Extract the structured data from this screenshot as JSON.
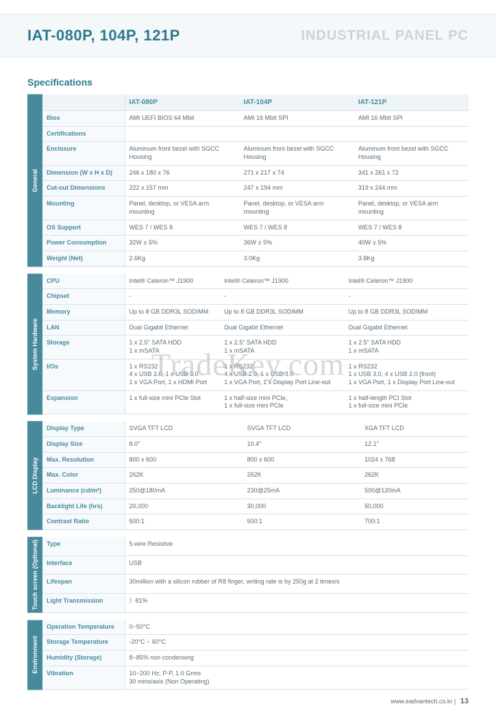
{
  "title": {
    "main": "IAT-080P, 104P, 121P",
    "sub": "INDUSTRIAL PANEL PC"
  },
  "headings": {
    "specifications": "Specifications"
  },
  "columns": [
    "IAT-080P",
    "IAT-104P",
    "IAT-121P"
  ],
  "sections": [
    {
      "label": "General",
      "rows": [
        {
          "name": "Bios",
          "v": [
            "AMI UEFI BIOS 64 Mbit",
            "AMI 16 Mbit SPI",
            "AMI 16 Mbit SPI"
          ]
        },
        {
          "name": "Certifications",
          "v": [
            "",
            "",
            ""
          ]
        },
        {
          "name": "Enclosure",
          "v": [
            "Aluminum front bezel with SGCC Housing",
            "Aluminum front bezel with SGCC Housing",
            "Aluminum front bezel with SGCC Housing"
          ]
        },
        {
          "name": "Dimension (W x H x D)",
          "v": [
            "246 x 180 x 76",
            "271 x 217 x 74",
            "341 x 261 x 72"
          ]
        },
        {
          "name": "Cut-out Dimensions",
          "v": [
            "222 x 157 mm",
            "247 x 194 mm",
            "319 x 244 mm"
          ]
        },
        {
          "name": "Mounting",
          "v": [
            "Panel, desktop, or VESA arm mounting",
            "Panel, desktop, or VESA arm mounting",
            "Panel, desktop, or VESA arm mounting"
          ]
        },
        {
          "name": "OS Support",
          "v": [
            "WES 7 / WES 8",
            "WES 7 / WES 8",
            "WES 7 / WES 8"
          ]
        },
        {
          "name": "Power Consumption",
          "v": [
            "32W ± 5%",
            "36W ± 5%",
            "40W ± 5%"
          ]
        },
        {
          "name": "Weight (Net)",
          "v": [
            "2.6Kg",
            "3.0Kg",
            "3.8Kg"
          ]
        }
      ]
    },
    {
      "label": "System Hardware",
      "rows": [
        {
          "name": "CPU",
          "v": [
            "Intel® Celeron™ J1900",
            "Intel® Celeron™ J1900",
            "Intel® Celeron™ J1900"
          ]
        },
        {
          "name": "Chipset",
          "v": [
            "-",
            "-",
            "-"
          ]
        },
        {
          "name": "Memory",
          "v": [
            "Up to 8 GB DDR3L SODIMM",
            "Up to 8 GB DDR3L SODIMM",
            "Up to 8 GB DDR3L SODIMM"
          ]
        },
        {
          "name": "LAN",
          "v": [
            "Dual Gigabit Ethernet",
            "Dual Gigabit Ethernet",
            "Dual Gigabit Ethernet"
          ]
        },
        {
          "name": "Storage",
          "v": [
            "1 x 2.5\" SATA HDD\n1 x mSATA",
            "1 x 2.5\" SATA HDD\n1 x mSATA",
            "1 x 2.5\" SATA HDD\n1 x mSATA"
          ]
        },
        {
          "name": "I/Os",
          "v": [
            "1 x RS232\n4 x USB 2.0, 1 x USB 3.0\n1 x VGA Port, 1 x HDMI Port",
            "1 x RS232\n4 x USB 2.0, 1 x USB 3.0\n1 x VGA Port, 1 x Display Port Line-out",
            "1 x RS232\n1 x USB 3.0, 4 x USB 2.0 (front)\n1 x VGA Port, 1 x Display Port Line-out"
          ]
        },
        {
          "name": "Expansion",
          "v": [
            "1 x full-size mini PCIe Slot",
            "1 x half-size mini PCIe,\n1 x full-size mini PCIe",
            "1 x half-length PCI Slot\n1 x full-size mini PCIe"
          ]
        }
      ]
    },
    {
      "label": "LCD Display",
      "rows": [
        {
          "name": "Display Type",
          "v": [
            "SVGA TFT LCD",
            "SVGA TFT LCD",
            "XGA TFT LCD"
          ]
        },
        {
          "name": "Display Size",
          "v": [
            "8.0\"",
            "10.4\"",
            "12.1\""
          ]
        },
        {
          "name": "Max. Resolution",
          "v": [
            "800 x 600",
            "800 x 600",
            "1024 x 768"
          ]
        },
        {
          "name": "Max. Color",
          "v": [
            "262K",
            "262K",
            "262K"
          ]
        },
        {
          "name": "Luminance (cd/m²)",
          "v": [
            "250@180mA",
            "230@25mA",
            "500@120mA"
          ]
        },
        {
          "name": "Backlight Life (hrs)",
          "v": [
            "20,000",
            "30,000",
            "50,000"
          ]
        },
        {
          "name": "Contrast Ratio",
          "v": [
            "500:1",
            "500:1",
            "700:1"
          ]
        }
      ]
    },
    {
      "label": "Touch screen (Optional)",
      "merged_rows": [
        {
          "name": "Type",
          "v": "5-wire Resistive"
        },
        {
          "name": "Interface",
          "v": "USB"
        },
        {
          "name": "Lifespan",
          "v": "30million with a silicon rubber of R8 finger, writing rate is by 250g at 2 times/s"
        },
        {
          "name": "Light Transmission",
          "v": "〉81%"
        }
      ]
    },
    {
      "label": "Environment",
      "merged_rows": [
        {
          "name": "Operation Temperature",
          "v": "0~50°C"
        },
        {
          "name": "Storage Temperature",
          "v": "-20°C ~ 60°C"
        },
        {
          "name": "Humidity (Storage)",
          "v": "8~85% non condensing"
        },
        {
          "name": "Vibration",
          "v": "10~200 Hz, P-P, 1.0 Grms\n30 mins/axis (Non Operating)"
        }
      ]
    }
  ],
  "watermark": "TradeKey.com",
  "footer": {
    "url": "www.eadvantech.co.kr",
    "page": "13"
  },
  "style": {
    "accent": "#468a9c",
    "heading_color": "#2a7a8c",
    "banner_bg": "#f5f8fa",
    "text_color": "#5a6a75",
    "border_color": "#d6e2ea",
    "row_label_bg": "#f7fafc",
    "header_bg": "#eef4f8",
    "sub_title_color": "#c8d4db",
    "base_fontsize": 9,
    "title_fontsize": 22
  }
}
